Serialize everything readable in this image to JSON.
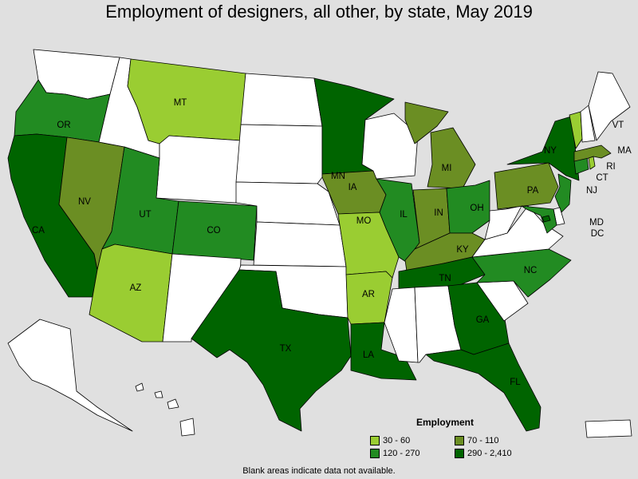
{
  "title": "Employment of designers, all other, by state, May 2019",
  "legend": {
    "title": "Employment",
    "bins": [
      {
        "label": "30 - 60",
        "color": "#9acd32"
      },
      {
        "label": "70 - 110",
        "color": "#6b8e23"
      },
      {
        "label": "120 - 270",
        "color": "#228b22"
      },
      {
        "label": "290 - 2,410",
        "color": "#006400"
      }
    ]
  },
  "footnote": "Blank areas indicate data not available.",
  "states": {
    "WA": {
      "bin": null
    },
    "OR": {
      "label": "OR",
      "bin": 2
    },
    "CA": {
      "label": "CA",
      "bin": 3
    },
    "NV": {
      "label": "NV",
      "bin": 1
    },
    "ID": {
      "bin": null
    },
    "MT": {
      "label": "MT",
      "bin": 0
    },
    "WY": {
      "bin": null
    },
    "UT": {
      "label": "UT",
      "bin": 2
    },
    "AZ": {
      "label": "AZ",
      "bin": 0
    },
    "CO": {
      "label": "CO",
      "bin": 2
    },
    "NM": {
      "bin": null
    },
    "ND": {
      "bin": null
    },
    "SD": {
      "bin": null
    },
    "NE": {
      "bin": null
    },
    "KS": {
      "bin": null
    },
    "OK": {
      "bin": null
    },
    "TX": {
      "label": "TX",
      "bin": 3
    },
    "MN": {
      "label": "MN",
      "bin": 3
    },
    "IA": {
      "label": "IA",
      "bin": 1
    },
    "MO": {
      "label": "MO",
      "bin": 0
    },
    "AR": {
      "label": "AR",
      "bin": 0
    },
    "LA": {
      "label": "LA",
      "bin": 3
    },
    "WI": {
      "bin": null
    },
    "IL": {
      "label": "IL",
      "bin": 2
    },
    "MI": {
      "label": "MI",
      "bin": 1
    },
    "IN": {
      "label": "IN",
      "bin": 1
    },
    "OH": {
      "label": "OH",
      "bin": 2
    },
    "KY": {
      "label": "KY",
      "bin": 1
    },
    "TN": {
      "label": "TN",
      "bin": 3
    },
    "MS": {
      "bin": null
    },
    "AL": {
      "bin": null
    },
    "GA": {
      "label": "GA",
      "bin": 3
    },
    "FL": {
      "label": "FL",
      "bin": 3
    },
    "SC": {
      "bin": null
    },
    "NC": {
      "label": "NC",
      "bin": 2
    },
    "VA": {
      "bin": null
    },
    "WV": {
      "bin": null
    },
    "PA": {
      "label": "PA",
      "bin": 1
    },
    "NY": {
      "label": "NY",
      "bin": 3
    },
    "NJ": {
      "label": "NJ",
      "bin": 2
    },
    "MD": {
      "label": "MD",
      "bin": 2
    },
    "DE": {
      "bin": null
    },
    "DC": {
      "label": "DC",
      "bin": 3
    },
    "CT": {
      "label": "CT",
      "bin": 2
    },
    "RI": {
      "label": "RI",
      "bin": 0
    },
    "MA": {
      "label": "MA",
      "bin": 1
    },
    "VT": {
      "label": "VT",
      "bin": 0
    },
    "NH": {
      "bin": null
    },
    "ME": {
      "bin": null
    },
    "AK": {
      "bin": null
    },
    "HI": {
      "bin": null
    },
    "PR": {
      "bin": null
    }
  }
}
